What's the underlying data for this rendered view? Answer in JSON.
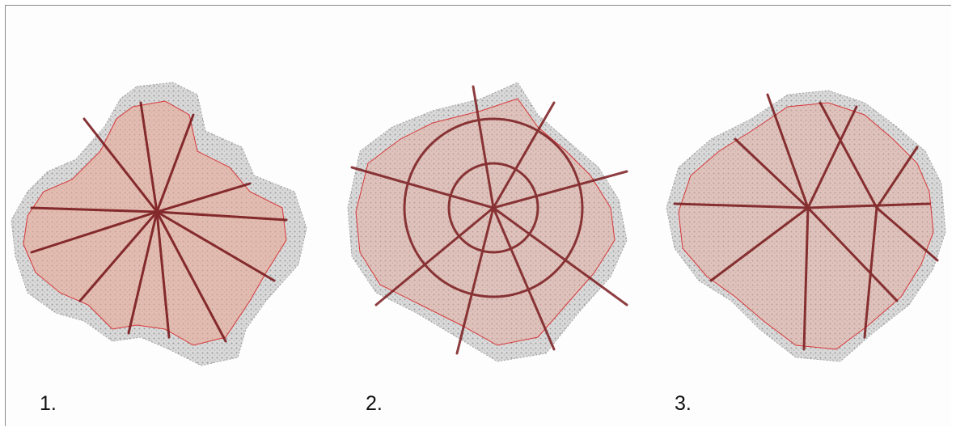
{
  "figure": {
    "panels": [
      {
        "id": "p1",
        "label": "1.",
        "pattern": "radial"
      },
      {
        "id": "p2",
        "label": "2.",
        "pattern": "radial-concentric"
      },
      {
        "id": "p3",
        "label": "3.",
        "pattern": "polycentric"
      }
    ],
    "colors": {
      "texture": "#9a9a9a",
      "zone_fill": "#e7a796",
      "boundary": "#d8373a",
      "road": "#7a1b1e"
    }
  }
}
